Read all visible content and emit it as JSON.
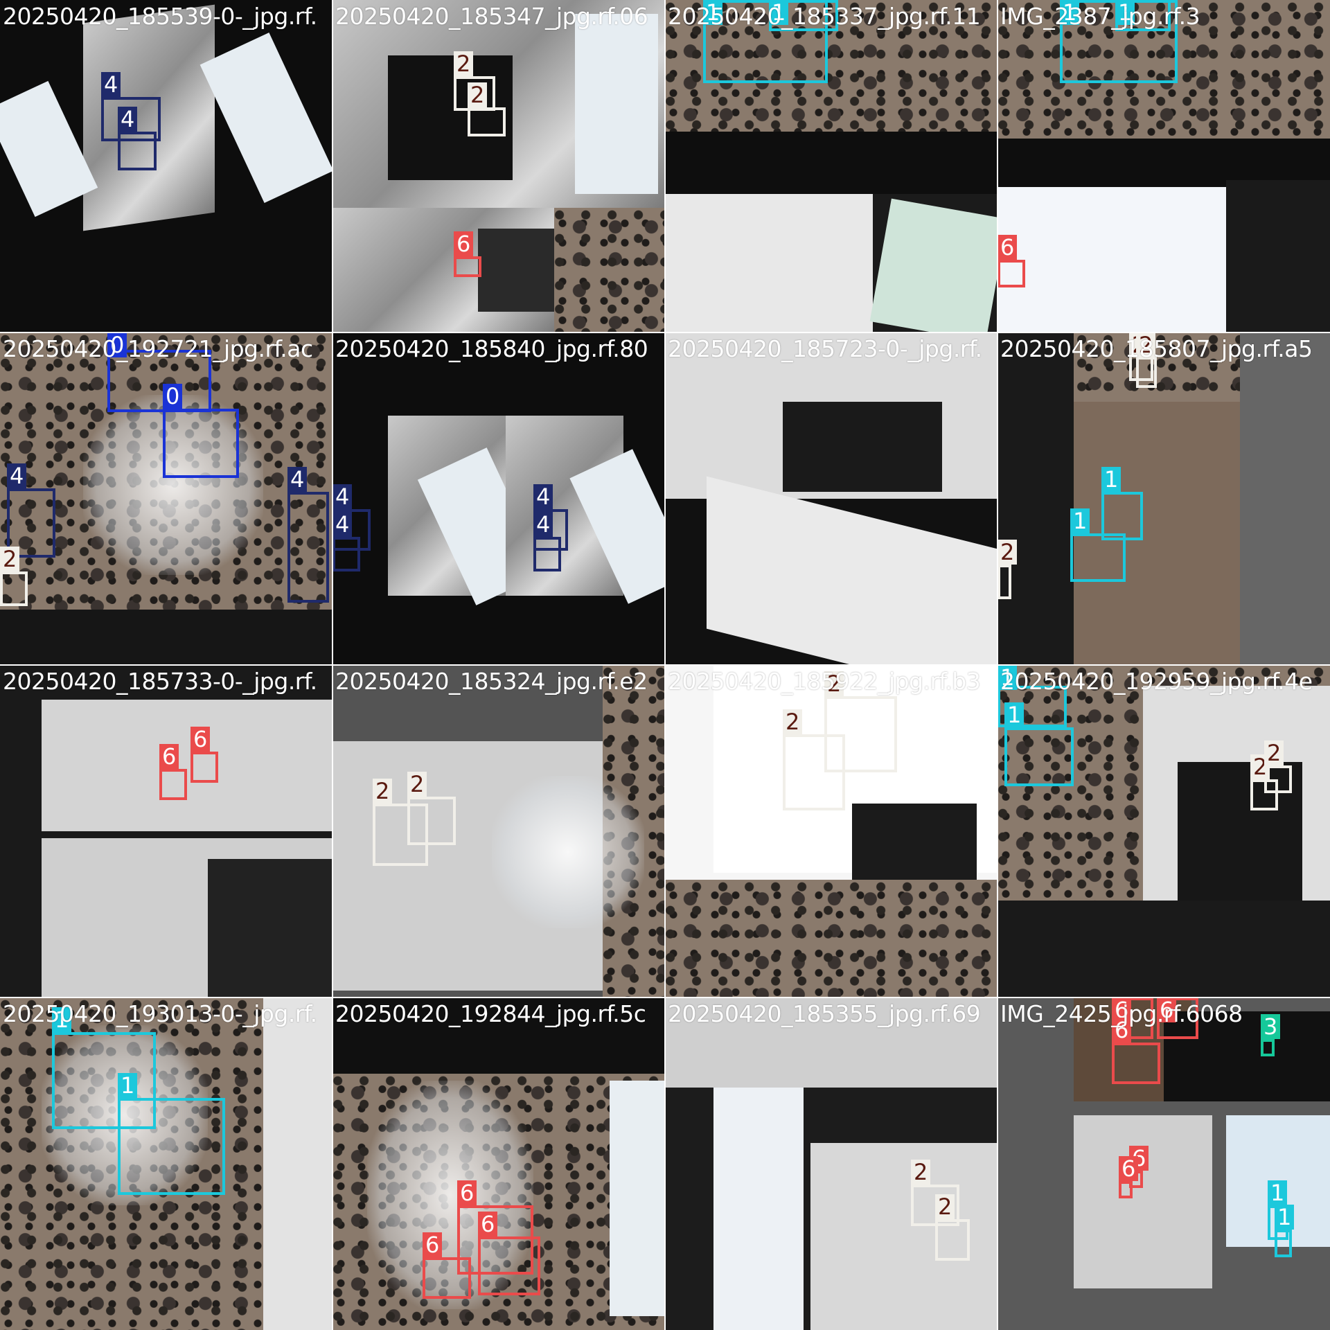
{
  "colors": {
    "c0": "#1a33d6",
    "c1": "#1cc8dc",
    "c2": "#f1efe9",
    "c2_text": "#5a1a10",
    "c3": "#16c89a",
    "c4": "#1f2a6b",
    "c6": "#ea4b4b"
  },
  "tiles": [
    {
      "title": "20250420_185539-0-_jpg.rf.",
      "boxes": [
        {
          "cls": "4",
          "label": "4"
        },
        {
          "cls": "4",
          "label": "4"
        }
      ]
    },
    {
      "title": "20250420_185347_jpg.rf.06",
      "boxes": [
        {
          "cls": "2",
          "label": "2"
        },
        {
          "cls": "2",
          "label": "2"
        },
        {
          "cls": "6",
          "label": "6"
        }
      ]
    },
    {
      "title": "20250420_185337_jpg.rf.11",
      "boxes": [
        {
          "cls": "1",
          "label": "1"
        },
        {
          "cls": "1",
          "label": "1"
        }
      ]
    },
    {
      "title": "IMG_2387_jpg.rf.3",
      "boxes": [
        {
          "cls": "1",
          "label": "1"
        },
        {
          "cls": "1",
          "label": "1"
        },
        {
          "cls": "6",
          "label": "6"
        }
      ]
    },
    {
      "title": "20250420_192721_jpg.rf.ac",
      "boxes": [
        {
          "cls": "0",
          "label": "0"
        },
        {
          "cls": "0",
          "label": "0"
        },
        {
          "cls": "4",
          "label": "4"
        },
        {
          "cls": "4",
          "label": "4"
        },
        {
          "cls": "2",
          "label": "2"
        }
      ]
    },
    {
      "title": "20250420_185840_jpg.rf.80",
      "boxes": [
        {
          "cls": "4",
          "label": "4"
        },
        {
          "cls": "4",
          "label": "4"
        },
        {
          "cls": "4",
          "label": "4"
        },
        {
          "cls": "4",
          "label": "4"
        }
      ]
    },
    {
      "title": "20250420_185723-0-_jpg.rf.",
      "boxes": []
    },
    {
      "title": "20250420_185807_jpg.rf.a5",
      "boxes": [
        {
          "cls": "2",
          "label": "2"
        },
        {
          "cls": "2",
          "label": "2"
        },
        {
          "cls": "1",
          "label": "1"
        },
        {
          "cls": "1",
          "label": "1"
        },
        {
          "cls": "2",
          "label": "2"
        }
      ]
    },
    {
      "title": "20250420_185733-0-_jpg.rf.",
      "boxes": [
        {
          "cls": "6",
          "label": "6"
        },
        {
          "cls": "6",
          "label": "6"
        }
      ]
    },
    {
      "title": "20250420_185324_jpg.rf.e2",
      "boxes": [
        {
          "cls": "2",
          "label": "2"
        },
        {
          "cls": "2",
          "label": "2"
        }
      ]
    },
    {
      "title": "20250420_185922_jpg.rf.b3",
      "boxes": [
        {
          "cls": "2",
          "label": "2"
        },
        {
          "cls": "2",
          "label": "2"
        }
      ]
    },
    {
      "title": "20250420_192959_jpg.rf.4e",
      "boxes": [
        {
          "cls": "1",
          "label": "1"
        },
        {
          "cls": "1",
          "label": "1"
        },
        {
          "cls": "2",
          "label": "2"
        },
        {
          "cls": "2",
          "label": "2"
        }
      ]
    },
    {
      "title": "20250420_193013-0-_jpg.rf.",
      "boxes": [
        {
          "cls": "1",
          "label": "1"
        },
        {
          "cls": "1",
          "label": "1"
        }
      ]
    },
    {
      "title": "20250420_192844_jpg.rf.5c",
      "boxes": [
        {
          "cls": "6",
          "label": "6"
        },
        {
          "cls": "6",
          "label": "6"
        },
        {
          "cls": "6",
          "label": "6"
        }
      ]
    },
    {
      "title": "20250420_185355_jpg.rf.69",
      "boxes": [
        {
          "cls": "2",
          "label": "2"
        },
        {
          "cls": "2",
          "label": "2"
        }
      ]
    },
    {
      "title": "IMG_2425_jpg.rf.6068",
      "boxes": [
        {
          "cls": "6",
          "label": "6"
        },
        {
          "cls": "6",
          "label": "6"
        },
        {
          "cls": "6",
          "label": "6"
        },
        {
          "cls": "3",
          "label": "3"
        },
        {
          "cls": "6",
          "label": "6"
        },
        {
          "cls": "6",
          "label": "6"
        },
        {
          "cls": "1",
          "label": "1"
        },
        {
          "cls": "1",
          "label": "1"
        }
      ]
    }
  ]
}
